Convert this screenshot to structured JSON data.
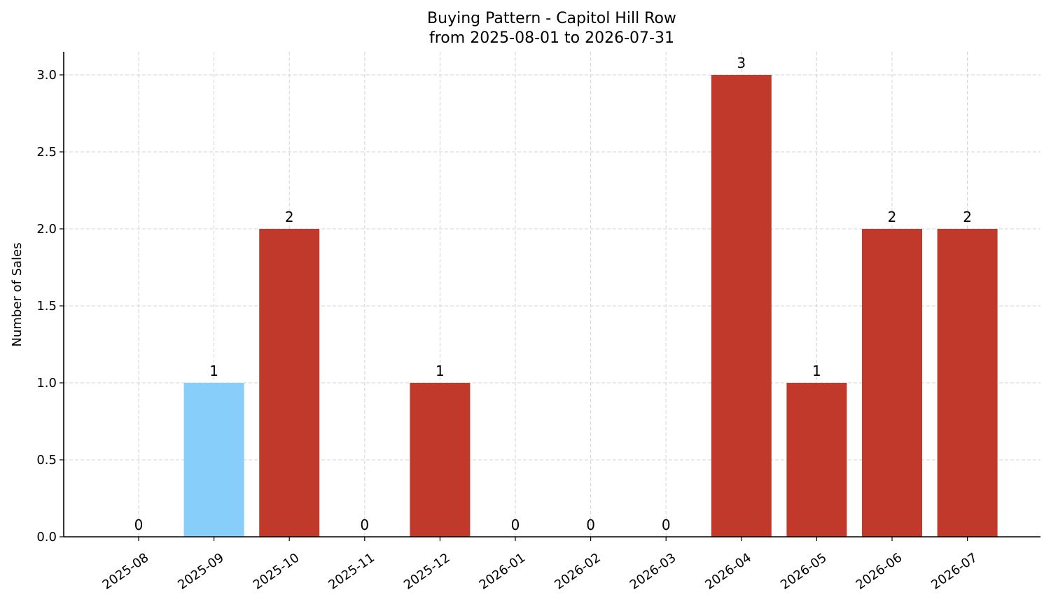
{
  "chart_data": {
    "type": "bar",
    "title": "Buying Pattern - Capitol Hill Row",
    "subtitle": "from 2025-08-01 to 2026-07-31",
    "xlabel": "",
    "ylabel": "Number of Sales",
    "ylim": [
      0,
      3.15
    ],
    "yticks": [
      "0.0",
      "0.5",
      "1.0",
      "1.5",
      "2.0",
      "2.5",
      "3.0"
    ],
    "grid": true,
    "categories": [
      "2025-08",
      "2025-09",
      "2025-10",
      "2025-11",
      "2025-12",
      "2026-01",
      "2026-02",
      "2026-03",
      "2026-04",
      "2026-05",
      "2026-06",
      "2026-07"
    ],
    "values": [
      0,
      1,
      2,
      0,
      1,
      0,
      0,
      0,
      3,
      1,
      2,
      2
    ],
    "bar_colors": [
      "#c0392b",
      "#87cefa",
      "#c0392b",
      "#c0392b",
      "#c0392b",
      "#c0392b",
      "#c0392b",
      "#c0392b",
      "#c0392b",
      "#c0392b",
      "#c0392b",
      "#c0392b"
    ]
  }
}
